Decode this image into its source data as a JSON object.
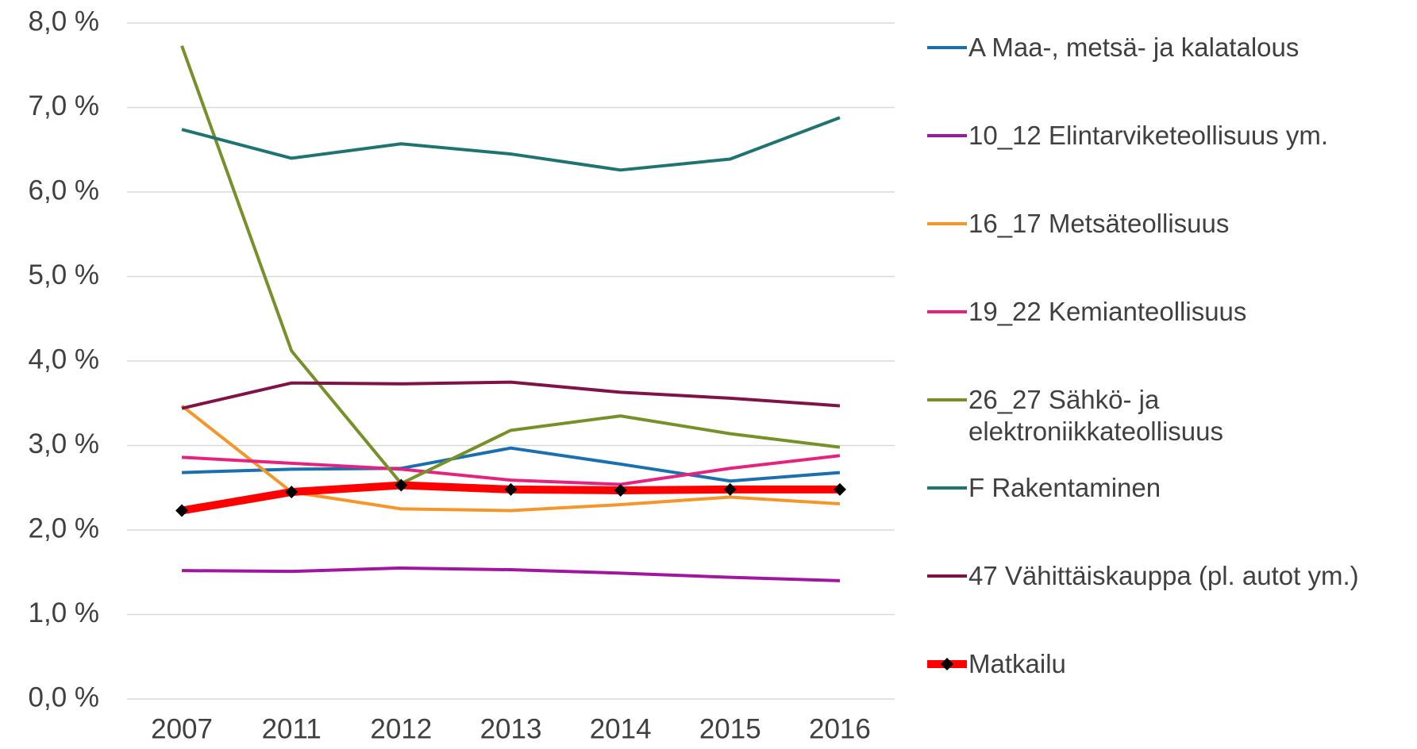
{
  "chart_data": {
    "type": "line",
    "categories": [
      "2007",
      "2011",
      "2012",
      "2013",
      "2014",
      "2015",
      "2016"
    ],
    "ylim": [
      0,
      8
    ],
    "yticks": [
      {
        "value": 0,
        "label": "0,0 %"
      },
      {
        "value": 1,
        "label": "1,0 %"
      },
      {
        "value": 2,
        "label": "2,0 %"
      },
      {
        "value": 3,
        "label": "3,0 %"
      },
      {
        "value": 4,
        "label": "4,0 %"
      },
      {
        "value": 5,
        "label": "5,0 %"
      },
      {
        "value": 6,
        "label": "6,0 %"
      },
      {
        "value": 7,
        "label": "7,0 %"
      },
      {
        "value": 8,
        "label": "8,0 %"
      }
    ],
    "grid": true,
    "legend": "right",
    "series": [
      {
        "name": "A Maa-, metsä- ja kalatalous",
        "color": "#1a6fae",
        "values": [
          2.68,
          2.72,
          2.73,
          2.97,
          2.78,
          2.58,
          2.68
        ]
      },
      {
        "name": "10_12 Elintarviketeollisuus ym.",
        "color": "#a0169e",
        "values": [
          1.52,
          1.51,
          1.55,
          1.53,
          1.49,
          1.44,
          1.4
        ]
      },
      {
        "name": "16_17 Metsäteollisuus",
        "color": "#f5962a",
        "values": [
          3.47,
          2.45,
          2.25,
          2.23,
          2.3,
          2.39,
          2.31
        ]
      },
      {
        "name": "19_22 Kemianteollisuus",
        "color": "#e5237f",
        "values": [
          2.86,
          2.79,
          2.72,
          2.59,
          2.54,
          2.73,
          2.88
        ]
      },
      {
        "name": "26_27 Sähkö- ja elektroniikkateollisuus",
        "color": "#76902a",
        "values": [
          7.73,
          4.12,
          2.55,
          3.18,
          3.35,
          3.14,
          2.98
        ]
      },
      {
        "name": "F Rakentaminen",
        "color": "#1f7471",
        "values": [
          6.74,
          6.4,
          6.57,
          6.45,
          6.26,
          6.39,
          6.88
        ]
      },
      {
        "name": "47 Vähittäiskauppa (pl. autot ym.)",
        "color": "#7f1348",
        "values": [
          3.44,
          3.74,
          3.73,
          3.75,
          3.63,
          3.56,
          3.47
        ]
      },
      {
        "name": "Matkailu",
        "color": "#ff0000",
        "marker_color": "#000000",
        "values": [
          2.23,
          2.45,
          2.53,
          2.48,
          2.47,
          2.48,
          2.48
        ]
      }
    ]
  }
}
